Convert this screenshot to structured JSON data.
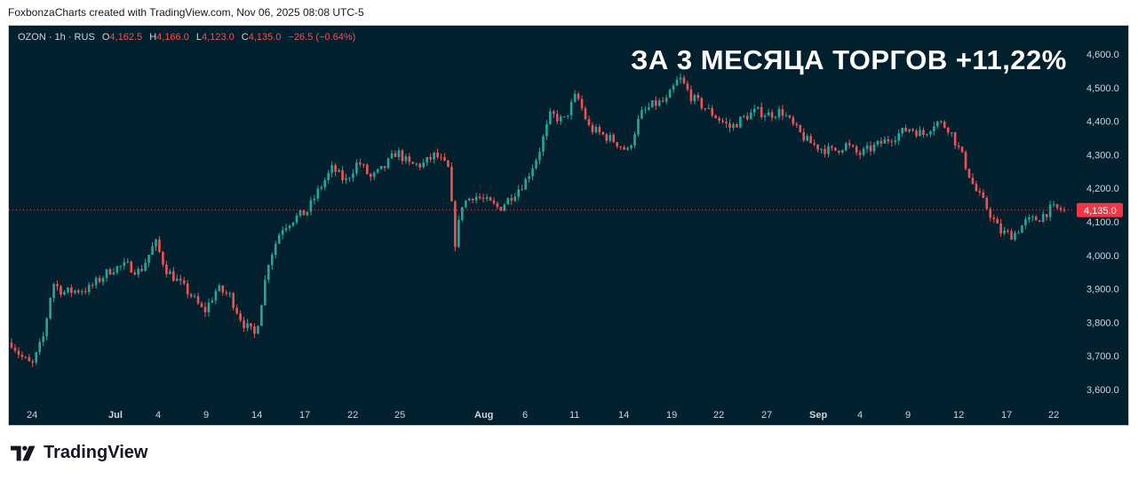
{
  "header": {
    "attribution": "FoxbonzaCharts created with TradingView.com, Nov 06, 2025 08:08 UTC-5"
  },
  "legend": {
    "symbol": "OZON · 1h · RUS",
    "open_key": "O",
    "open": "4,162.5",
    "high_key": "H",
    "high": "4,166.0",
    "low_key": "L",
    "low": "4,123.0",
    "close_key": "C",
    "close": "4,135.0",
    "change": "−26.5 (−0.64%)"
  },
  "annotation": "ЗА 3 МЕСЯЦА ТОРГОВ +11,22%",
  "footer": {
    "brand": "TradingView"
  },
  "colors": {
    "background": "#03202f",
    "up": "#26a69a",
    "down": "#ef5350",
    "axis_text": "#d1d4dc",
    "price_tag": "#f23645"
  },
  "chart_data": {
    "type": "candlestick",
    "symbol": "OZON",
    "interval": "1h",
    "last_price": 4135.0,
    "last_price_label": "4,135.0",
    "y_ticks": [
      4600,
      4500,
      4400,
      4300,
      4200,
      4100,
      4000,
      3900,
      3800,
      3700,
      3600
    ],
    "y_tick_labels": [
      "4,600.0",
      "4,500.0",
      "4,400.0",
      "4,300.0",
      "4,200.0",
      "4,100.0",
      "4,000.0",
      "3,900.0",
      "3,800.0",
      "3,700.0",
      "3,600.0"
    ],
    "x_ticks": [
      "24",
      "Jul",
      "4",
      "9",
      "14",
      "17",
      "22",
      "25",
      "Aug",
      "6",
      "11",
      "14",
      "19",
      "22",
      "27",
      "Sep",
      "4",
      "9",
      "12",
      "17",
      "22"
    ],
    "x_tick_bold": [
      false,
      true,
      false,
      false,
      false,
      false,
      false,
      false,
      true,
      false,
      false,
      false,
      false,
      false,
      false,
      true,
      false,
      false,
      false,
      false,
      false
    ],
    "ylim": [
      3560,
      4660
    ],
    "price_path": [
      {
        "x": 0,
        "y": 3740
      },
      {
        "x": 0.7,
        "y": 3700
      },
      {
        "x": 1.6,
        "y": 3670
      },
      {
        "x": 2.5,
        "y": 3760
      },
      {
        "x": 3.2,
        "y": 3920
      },
      {
        "x": 4.0,
        "y": 3890
      },
      {
        "x": 6.0,
        "y": 3900
      },
      {
        "x": 7.8,
        "y": 3960
      },
      {
        "x": 9.0,
        "y": 3970
      },
      {
        "x": 10.0,
        "y": 3950
      },
      {
        "x": 11.2,
        "y": 4040
      },
      {
        "x": 12.0,
        "y": 3960
      },
      {
        "x": 13.0,
        "y": 3920
      },
      {
        "x": 14.0,
        "y": 3880
      },
      {
        "x": 15.0,
        "y": 3830
      },
      {
        "x": 16.0,
        "y": 3900
      },
      {
        "x": 17.0,
        "y": 3880
      },
      {
        "x": 18.0,
        "y": 3800
      },
      {
        "x": 19.0,
        "y": 3760
      },
      {
        "x": 20.0,
        "y": 3980
      },
      {
        "x": 21.0,
        "y": 4080
      },
      {
        "x": 22.0,
        "y": 4110
      },
      {
        "x": 23.0,
        "y": 4130
      },
      {
        "x": 24.0,
        "y": 4200
      },
      {
        "x": 25.0,
        "y": 4260
      },
      {
        "x": 26.0,
        "y": 4220
      },
      {
        "x": 27.0,
        "y": 4280
      },
      {
        "x": 28.0,
        "y": 4230
      },
      {
        "x": 29.0,
        "y": 4260
      },
      {
        "x": 30.0,
        "y": 4310
      },
      {
        "x": 31.0,
        "y": 4270
      },
      {
        "x": 32.0,
        "y": 4270
      },
      {
        "x": 33.0,
        "y": 4300
      },
      {
        "x": 34.0,
        "y": 4260
      },
      {
        "x": 34.6,
        "y": 4020
      },
      {
        "x": 35.0,
        "y": 4150
      },
      {
        "x": 36.0,
        "y": 4180
      },
      {
        "x": 37.0,
        "y": 4160
      },
      {
        "x": 38.0,
        "y": 4140
      },
      {
        "x": 39.0,
        "y": 4180
      },
      {
        "x": 40.0,
        "y": 4220
      },
      {
        "x": 41.0,
        "y": 4300
      },
      {
        "x": 42.0,
        "y": 4420
      },
      {
        "x": 43.0,
        "y": 4400
      },
      {
        "x": 44.0,
        "y": 4480
      },
      {
        "x": 45.0,
        "y": 4380
      },
      {
        "x": 46.0,
        "y": 4360
      },
      {
        "x": 47.0,
        "y": 4340
      },
      {
        "x": 48.0,
        "y": 4310
      },
      {
        "x": 49.0,
        "y": 4420
      },
      {
        "x": 50.0,
        "y": 4450
      },
      {
        "x": 51.0,
        "y": 4460
      },
      {
        "x": 52.0,
        "y": 4530
      },
      {
        "x": 53.0,
        "y": 4470
      },
      {
        "x": 54.0,
        "y": 4440
      },
      {
        "x": 55.0,
        "y": 4410
      },
      {
        "x": 56.0,
        "y": 4380
      },
      {
        "x": 57.0,
        "y": 4410
      },
      {
        "x": 58.0,
        "y": 4430
      },
      {
        "x": 59.0,
        "y": 4420
      },
      {
        "x": 60.0,
        "y": 4430
      },
      {
        "x": 61.0,
        "y": 4380
      },
      {
        "x": 62.0,
        "y": 4340
      },
      {
        "x": 63.0,
        "y": 4320
      },
      {
        "x": 64.0,
        "y": 4310
      },
      {
        "x": 65.0,
        "y": 4330
      },
      {
        "x": 66.0,
        "y": 4300
      },
      {
        "x": 67.0,
        "y": 4320
      },
      {
        "x": 68.0,
        "y": 4340
      },
      {
        "x": 69.0,
        "y": 4360
      },
      {
        "x": 70.0,
        "y": 4380
      },
      {
        "x": 71.0,
        "y": 4360
      },
      {
        "x": 72.0,
        "y": 4400
      },
      {
        "x": 73.0,
        "y": 4380
      },
      {
        "x": 74.0,
        "y": 4300
      },
      {
        "x": 75.0,
        "y": 4200
      },
      {
        "x": 76.0,
        "y": 4140
      },
      {
        "x": 77.0,
        "y": 4070
      },
      {
        "x": 78.0,
        "y": 4060
      },
      {
        "x": 79.0,
        "y": 4100
      },
      {
        "x": 80.0,
        "y": 4110
      },
      {
        "x": 81.0,
        "y": 4140
      },
      {
        "x": 82.0,
        "y": 4135
      }
    ],
    "price_path_x_unit": "bar index"
  }
}
